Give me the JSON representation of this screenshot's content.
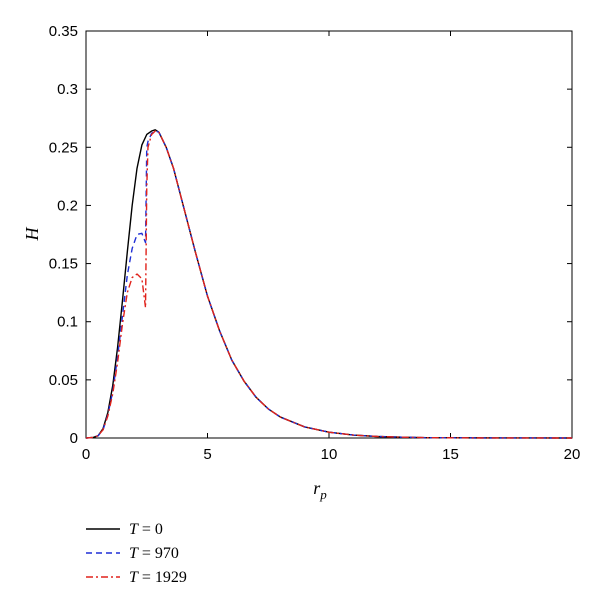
{
  "chart_data": {
    "type": "line",
    "xlabel": "r",
    "xlabel_sub": "p",
    "ylabel": "H",
    "xlim": [
      0,
      20
    ],
    "ylim": [
      0,
      0.35
    ],
    "xticks": [
      0,
      5,
      10,
      15,
      20
    ],
    "xtick_labels": [
      "0",
      "5",
      "10",
      "15",
      "20"
    ],
    "yticks": [
      0,
      0.05,
      0.1,
      0.15,
      0.2,
      0.25,
      0.3,
      0.35
    ],
    "ytick_labels": [
      "0",
      "0.05",
      "0.1",
      "0.15",
      "0.2",
      "0.25",
      "0.3",
      "0.35"
    ],
    "grid": false,
    "legend_position": "bottom-left, below plot",
    "series": [
      {
        "name": "T = 0",
        "name_var": "T",
        "name_rest": " = 0",
        "color": "#000000",
        "dash": "solid",
        "x": [
          0,
          0.3,
          0.5,
          0.7,
          0.9,
          1.1,
          1.3,
          1.5,
          1.7,
          1.9,
          2.1,
          2.3,
          2.5,
          2.7,
          2.85,
          3.0,
          3.3,
          3.6,
          4.0,
          4.5,
          5.0,
          5.5,
          6.0,
          6.5,
          7.0,
          7.5,
          8.0,
          9.0,
          10.0,
          11.0,
          12.0,
          13.0,
          14.0,
          16.0,
          18.0,
          20.0
        ],
        "y": [
          0,
          0.0005,
          0.002,
          0.008,
          0.022,
          0.045,
          0.078,
          0.118,
          0.16,
          0.2,
          0.232,
          0.252,
          0.261,
          0.264,
          0.265,
          0.263,
          0.25,
          0.232,
          0.2,
          0.16,
          0.122,
          0.092,
          0.067,
          0.049,
          0.035,
          0.025,
          0.018,
          0.0095,
          0.005,
          0.0025,
          0.0013,
          0.0007,
          0.0003,
          0.0001,
          3e-05,
          0
        ]
      },
      {
        "name": "T = 970",
        "name_var": "T",
        "name_rest": " = 970",
        "color": "#1f2fd6",
        "dash": "dashed",
        "x": [
          0,
          0.3,
          0.5,
          0.7,
          0.9,
          1.1,
          1.3,
          1.5,
          1.7,
          1.9,
          2.1,
          2.3,
          2.45,
          2.5,
          2.55,
          2.7,
          2.85,
          3.0,
          3.3,
          3.6,
          4.0,
          4.5,
          5.0,
          5.5,
          6.0,
          6.5,
          7.0,
          7.5,
          8.0,
          9.0,
          10.0,
          11.0,
          12.0,
          13.0,
          14.0,
          16.0,
          18.0,
          20.0
        ],
        "y": [
          0,
          0.0005,
          0.002,
          0.007,
          0.02,
          0.04,
          0.07,
          0.105,
          0.14,
          0.163,
          0.175,
          0.176,
          0.168,
          0.25,
          0.255,
          0.262,
          0.264,
          0.263,
          0.25,
          0.232,
          0.2,
          0.16,
          0.122,
          0.092,
          0.067,
          0.049,
          0.035,
          0.025,
          0.018,
          0.0095,
          0.005,
          0.0025,
          0.0013,
          0.0007,
          0.0003,
          0.0001,
          3e-05,
          0
        ]
      },
      {
        "name": "T = 1929",
        "name_var": "T",
        "name_rest": " = 1929",
        "color": "#e0221b",
        "dash": "dashdot",
        "x": [
          0,
          0.3,
          0.5,
          0.7,
          0.9,
          1.1,
          1.3,
          1.5,
          1.7,
          1.9,
          2.1,
          2.3,
          2.45,
          2.5,
          2.55,
          2.7,
          2.85,
          3.0,
          3.3,
          3.6,
          4.0,
          4.5,
          5.0,
          5.5,
          6.0,
          6.5,
          7.0,
          7.5,
          8.0,
          9.0,
          10.0,
          11.0,
          12.0,
          13.0,
          14.0,
          16.0,
          18.0,
          20.0
        ],
        "y": [
          0,
          0.0005,
          0.002,
          0.007,
          0.019,
          0.038,
          0.065,
          0.098,
          0.125,
          0.138,
          0.141,
          0.137,
          0.112,
          0.215,
          0.25,
          0.261,
          0.264,
          0.263,
          0.25,
          0.232,
          0.2,
          0.16,
          0.122,
          0.092,
          0.067,
          0.049,
          0.035,
          0.025,
          0.018,
          0.0095,
          0.005,
          0.0025,
          0.0013,
          0.0007,
          0.0003,
          0.0001,
          3e-05,
          0
        ]
      }
    ]
  }
}
